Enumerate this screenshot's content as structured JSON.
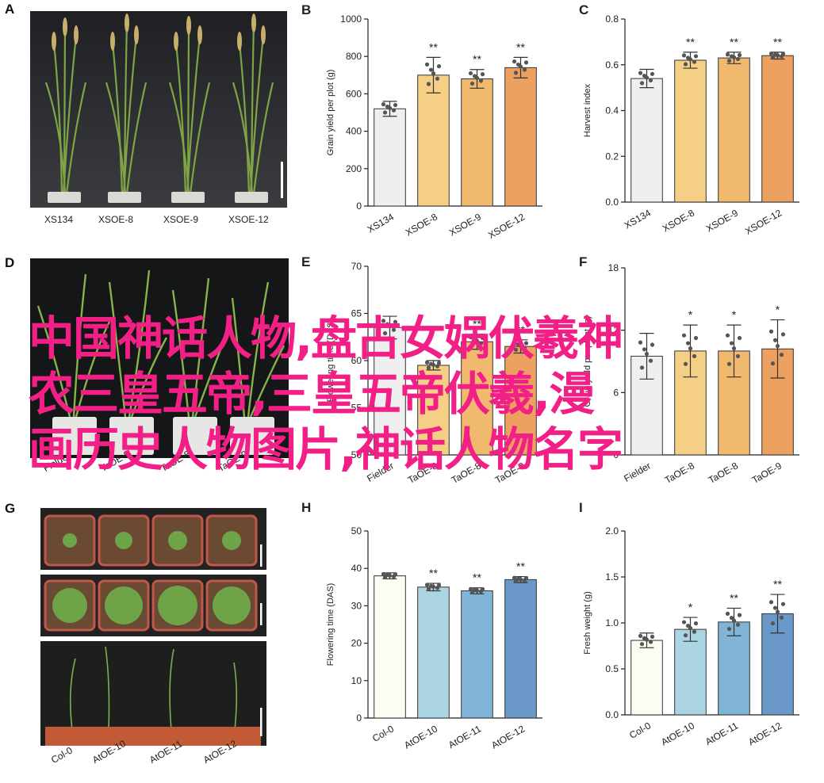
{
  "panels": {
    "A": {
      "letter": "A",
      "labels": [
        "XS134",
        "XSOE-8",
        "XSOE-9",
        "XSOE-12"
      ]
    },
    "D": {
      "letter": "D",
      "labels": [
        "Fielder",
        "TaOE-8",
        "TaOE-8",
        "TaOE-9"
      ]
    },
    "G": {
      "letter": "G",
      "labels": [
        "Col-0",
        "AtOE-10",
        "AtOE-11",
        "AtOE-12"
      ]
    }
  },
  "overlay": {
    "lines": [
      "中国神话人物,盘古女娲伏羲神",
      "农三皇五帝,三皇五帝伏羲,漫",
      "画历史人物图片,神话人物名字"
    ],
    "color": "#f21f86"
  },
  "chart_data": [
    {
      "id": "B",
      "letter": "B",
      "type": "bar",
      "ylabel": "Grain yield per plot (g)",
      "categories": [
        "XS134",
        "XSOE-8",
        "XSOE-9",
        "XSOE-12"
      ],
      "values": [
        520,
        700,
        680,
        740
      ],
      "errors": [
        40,
        95,
        50,
        55
      ],
      "sig": [
        "",
        "**",
        "**",
        "**"
      ],
      "ylim": [
        0,
        1000
      ],
      "yticks": [
        0,
        200,
        400,
        600,
        800,
        1000
      ],
      "colors": [
        "#efefef",
        "#f5cf86",
        "#f1b96e",
        "#eda160"
      ]
    },
    {
      "id": "C",
      "letter": "C",
      "type": "bar",
      "ylabel": "Harvest index",
      "categories": [
        "XS134",
        "XSOE-8",
        "XSOE-9",
        "XSOE-12"
      ],
      "values": [
        0.54,
        0.62,
        0.63,
        0.64
      ],
      "errors": [
        0.04,
        0.035,
        0.025,
        0.015
      ],
      "sig": [
        "",
        "**",
        "**",
        "**"
      ],
      "ylim": [
        0,
        0.8
      ],
      "yticks": [
        0.0,
        0.2,
        0.4,
        0.6,
        0.8
      ],
      "colors": [
        "#efefef",
        "#f5cf86",
        "#f1b96e",
        "#eda160"
      ]
    },
    {
      "id": "E",
      "letter": "E",
      "type": "bar",
      "ylabel": "Flowering time (DAS)",
      "categories": [
        "Fielder",
        "TaOE-8",
        "TaOE-8",
        "TaOE-9"
      ],
      "values": [
        63.5,
        59.5,
        62,
        61.5
      ],
      "errors": [
        1.2,
        0.5,
        0.8,
        0.7
      ],
      "sig": [
        "",
        "",
        "**",
        "**"
      ],
      "ylim": [
        50,
        70
      ],
      "yticks": [
        50,
        55,
        60,
        65,
        70
      ],
      "colors": [
        "#efefef",
        "#f5cf86",
        "#f1b96e",
        "#eda160"
      ]
    },
    {
      "id": "F",
      "letter": "F",
      "type": "bar",
      "ylabel": "Grain yield per plant (g)",
      "categories": [
        "Fielder",
        "TaOE-8",
        "TaOE-8",
        "TaOE-9"
      ],
      "values": [
        9.5,
        10,
        10,
        10.2
      ],
      "errors": [
        2.2,
        2.5,
        2.5,
        2.8
      ],
      "sig": [
        "",
        "*",
        "*",
        "*"
      ],
      "ylim": [
        0,
        18
      ],
      "yticks": [
        0,
        6,
        12,
        18
      ],
      "colors": [
        "#efefef",
        "#f5cf86",
        "#f1b96e",
        "#eda160"
      ]
    },
    {
      "id": "H",
      "letter": "H",
      "type": "bar",
      "ylabel": "Flowering time (DAS)",
      "categories": [
        "Col-0",
        "AtOE-10",
        "AtOE-11",
        "AtOE-12"
      ],
      "values": [
        38,
        35,
        34,
        37
      ],
      "errors": [
        0.8,
        1.0,
        0.8,
        0.8
      ],
      "sig": [
        "",
        "**",
        "**",
        "**"
      ],
      "ylim": [
        0,
        50
      ],
      "yticks": [
        0,
        10,
        20,
        30,
        40,
        50
      ],
      "colors": [
        "#fdfcf3",
        "#acd5e3",
        "#81b5d8",
        "#6a99c9"
      ]
    },
    {
      "id": "I",
      "letter": "I",
      "type": "bar",
      "ylabel": "Fresh weight (g)",
      "categories": [
        "Col-0",
        "AtOE-10",
        "AtOE-11",
        "AtOE-12"
      ],
      "values": [
        0.81,
        0.93,
        1.01,
        1.1
      ],
      "errors": [
        0.08,
        0.13,
        0.15,
        0.21
      ],
      "sig": [
        "",
        "*",
        "**",
        "**"
      ],
      "ylim": [
        0,
        2.0
      ],
      "yticks": [
        0.0,
        0.5,
        1.0,
        1.5,
        2.0
      ],
      "colors": [
        "#fdfcf3",
        "#acd5e3",
        "#81b5d8",
        "#6a99c9"
      ]
    }
  ]
}
